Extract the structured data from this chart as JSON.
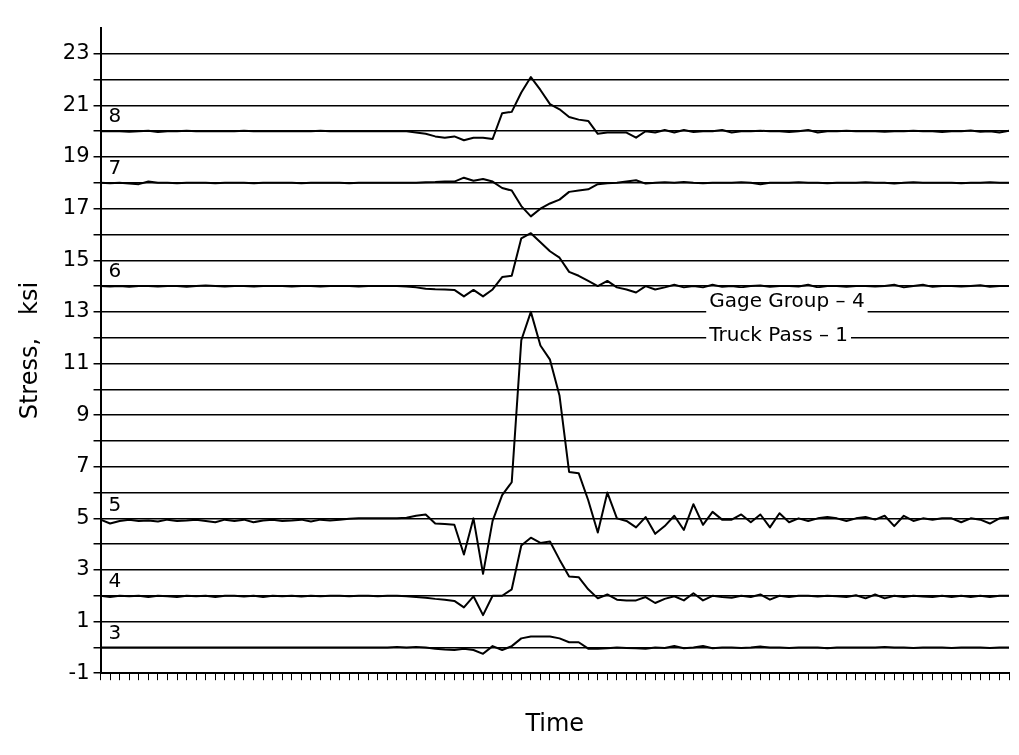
{
  "chart_data": {
    "type": "line",
    "xlabel": "Time",
    "ylabel": "Stress,   ksi",
    "annotations": [
      "Gage Group – 4",
      "Truck Pass – 1"
    ],
    "categories": [
      null,
      null,
      null,
      null,
      null,
      null,
      null,
      null,
      null,
      null,
      null,
      null,
      null,
      null,
      null,
      null,
      null,
      null,
      null,
      null,
      null,
      null,
      null,
      null,
      null,
      null,
      null,
      null,
      null,
      null,
      null,
      null,
      null,
      null,
      null,
      null,
      null,
      null,
      null,
      null,
      null,
      null,
      null,
      null,
      null,
      null,
      null,
      null,
      null,
      null,
      null,
      null,
      null,
      null,
      null,
      null,
      null,
      null,
      null,
      null,
      null,
      null,
      null,
      null,
      null,
      null,
      null,
      null,
      null,
      null,
      null,
      null,
      null,
      null,
      null,
      null,
      null,
      null,
      null,
      null,
      null,
      null,
      null,
      null,
      null,
      null,
      null,
      null,
      null,
      null,
      null,
      null,
      null,
      null,
      null,
      null
    ],
    "series": [
      {
        "name": "3",
        "color": "#000000",
        "values": [
          0,
          0,
          0,
          0,
          0,
          0,
          0,
          0,
          0,
          0,
          0,
          0,
          0,
          0,
          0,
          0,
          0,
          0,
          0,
          0,
          0,
          0,
          0,
          0,
          0,
          0,
          0,
          0,
          0,
          0,
          0,
          0.02,
          0,
          0.02,
          0,
          -0.05,
          -0.08,
          -0.1,
          -0.05,
          -0.1,
          -0.25,
          0.05,
          -0.1,
          0.05,
          0.35,
          0.42,
          0.42,
          0.42,
          0.35,
          0.2,
          0.2,
          -0.05,
          -0.05,
          -0.03,
          0,
          -0.02,
          -0.03,
          -0.05,
          0,
          -0.02,
          0.05,
          -0.03,
          0,
          0.05,
          -0.03,
          0,
          0,
          -0.02,
          0,
          0.03,
          0,
          0,
          -0.02,
          0,
          0,
          0,
          -0.03,
          0,
          0,
          0,
          0,
          0,
          0.02,
          0,
          0,
          -0.02,
          0,
          0,
          0,
          -0.02,
          0,
          0,
          0,
          -0.02,
          0,
          0
        ]
      },
      {
        "name": "4",
        "color": "#000000",
        "values": [
          2.0,
          1.95,
          2.0,
          1.98,
          2.0,
          1.95,
          2.0,
          1.98,
          1.95,
          2.0,
          1.98,
          2.0,
          1.95,
          2.0,
          2.0,
          1.97,
          2.0,
          1.95,
          2.0,
          1.98,
          2.0,
          1.97,
          2.0,
          1.98,
          2.0,
          2.0,
          1.98,
          2.0,
          2.0,
          1.98,
          2.0,
          2.0,
          1.98,
          1.95,
          1.92,
          1.88,
          1.85,
          1.8,
          1.55,
          1.98,
          1.25,
          2.0,
          2.0,
          2.25,
          3.95,
          4.25,
          4.05,
          4.1,
          3.4,
          2.75,
          2.72,
          2.25,
          1.9,
          2.05,
          1.85,
          1.82,
          1.82,
          1.95,
          1.72,
          1.88,
          1.98,
          1.82,
          2.1,
          1.82,
          2.0,
          1.95,
          1.92,
          2.0,
          1.95,
          2.05,
          1.85,
          2.0,
          1.95,
          2.0,
          2.0,
          1.97,
          2.0,
          1.98,
          1.95,
          2.02,
          1.9,
          2.05,
          1.9,
          2.0,
          1.95,
          2.0,
          1.97,
          1.95,
          2.0,
          1.95,
          2.0,
          1.95,
          2.0,
          1.95,
          2.0,
          2.0
        ]
      },
      {
        "name": "5",
        "color": "#000000",
        "values": [
          4.95,
          4.8,
          4.9,
          4.95,
          4.9,
          4.92,
          4.88,
          4.95,
          4.9,
          4.92,
          4.95,
          4.9,
          4.85,
          4.95,
          4.9,
          4.95,
          4.85,
          4.92,
          4.95,
          4.9,
          4.92,
          4.95,
          4.88,
          4.95,
          4.92,
          4.95,
          4.98,
          5.0,
          5.0,
          5.0,
          5.0,
          5.0,
          5.02,
          5.1,
          5.15,
          4.8,
          4.78,
          4.75,
          3.6,
          5.0,
          2.85,
          4.9,
          5.9,
          6.4,
          11.9,
          13.0,
          11.7,
          11.15,
          9.75,
          6.8,
          6.75,
          5.7,
          4.45,
          6.0,
          5.0,
          4.9,
          4.65,
          5.05,
          4.4,
          4.7,
          5.1,
          4.55,
          5.55,
          4.75,
          5.25,
          4.95,
          4.95,
          5.15,
          4.85,
          5.15,
          4.65,
          5.2,
          4.85,
          5.0,
          4.9,
          5.0,
          5.05,
          5.0,
          4.9,
          5.0,
          5.05,
          4.95,
          5.1,
          4.7,
          5.1,
          4.9,
          5.0,
          4.95,
          5.0,
          5.0,
          4.85,
          5.0,
          4.95,
          4.8,
          5.0,
          5.05
        ]
      },
      {
        "name": "6",
        "color": "#000000",
        "values": [
          14.0,
          13.98,
          14.0,
          13.97,
          14.0,
          14.0,
          13.98,
          14.0,
          14.0,
          13.97,
          14.0,
          14.02,
          14.0,
          13.98,
          14.0,
          14.0,
          13.98,
          14.0,
          14.0,
          14.0,
          13.98,
          14.0,
          14.0,
          13.98,
          14.0,
          14.0,
          14.0,
          13.98,
          14.0,
          14.0,
          14.0,
          14.0,
          13.98,
          13.95,
          13.9,
          13.88,
          13.87,
          13.85,
          13.6,
          13.85,
          13.6,
          13.87,
          14.35,
          14.4,
          15.85,
          16.05,
          15.7,
          15.35,
          15.1,
          14.55,
          14.4,
          14.2,
          14.0,
          14.2,
          13.95,
          13.87,
          13.75,
          14.0,
          13.87,
          13.95,
          14.05,
          13.95,
          14.0,
          13.95,
          14.05,
          13.97,
          14.0,
          13.95,
          14.0,
          14.02,
          13.97,
          14.0,
          14.0,
          13.98,
          14.05,
          13.95,
          14.0,
          14.0,
          13.97,
          14.0,
          14.0,
          13.98,
          14.0,
          14.05,
          13.95,
          14.0,
          14.05,
          13.97,
          14.0,
          14.0,
          13.98,
          14.0,
          14.03,
          13.97,
          14.0,
          14.0
        ]
      },
      {
        "name": "7",
        "color": "#000000",
        "values": [
          18.0,
          17.98,
          18.0,
          17.97,
          17.95,
          18.05,
          18.0,
          18.0,
          17.98,
          18.0,
          18.0,
          18.0,
          17.98,
          18.0,
          18.0,
          18.0,
          17.98,
          18.0,
          18.0,
          18.0,
          18.0,
          17.98,
          18.0,
          18.0,
          18.0,
          18.0,
          17.98,
          18.0,
          18.0,
          18.0,
          18.0,
          18.0,
          18.0,
          18.0,
          18.02,
          18.03,
          18.05,
          18.05,
          18.2,
          18.08,
          18.15,
          18.05,
          17.8,
          17.7,
          17.1,
          16.7,
          17.0,
          17.2,
          17.35,
          17.65,
          17.7,
          17.75,
          17.95,
          17.98,
          18.0,
          18.05,
          18.1,
          17.97,
          18.0,
          18.02,
          18.0,
          18.03,
          18.0,
          17.98,
          18.0,
          18.0,
          18.0,
          18.02,
          18.0,
          17.95,
          18.0,
          18.0,
          18.0,
          18.02,
          18.0,
          18.0,
          17.98,
          18.0,
          18.0,
          18.0,
          18.02,
          18.0,
          18.0,
          17.97,
          18.0,
          18.02,
          18.0,
          18.0,
          18.0,
          18.0,
          17.98,
          18.0,
          18.0,
          18.02,
          18.0,
          18.0
        ]
      },
      {
        "name": "8",
        "color": "#000000",
        "values": [
          20.0,
          20.0,
          20.0,
          19.98,
          20.0,
          20.02,
          19.97,
          20.0,
          20.0,
          20.02,
          20.0,
          20.0,
          20.0,
          20.0,
          20.0,
          20.02,
          20.0,
          20.0,
          20.0,
          20.0,
          20.0,
          20.0,
          20.0,
          20.02,
          20.0,
          20.0,
          20.0,
          20.0,
          20.0,
          20.0,
          20.0,
          20.0,
          20.0,
          19.95,
          19.9,
          19.8,
          19.75,
          19.8,
          19.65,
          19.75,
          19.75,
          19.7,
          20.7,
          20.75,
          21.5,
          22.1,
          21.6,
          21.05,
          20.85,
          20.55,
          20.45,
          20.4,
          19.9,
          19.95,
          19.95,
          19.95,
          19.75,
          20.0,
          19.95,
          20.05,
          19.95,
          20.05,
          19.97,
          20.0,
          20.0,
          20.05,
          19.95,
          20.0,
          20.0,
          20.02,
          20.0,
          20.0,
          19.97,
          20.0,
          20.05,
          19.95,
          20.0,
          20.0,
          20.02,
          20.0,
          20.0,
          20.0,
          19.98,
          20.0,
          20.0,
          20.02,
          20.0,
          20.0,
          19.97,
          20.0,
          20.0,
          20.03,
          19.98,
          20.0,
          19.95,
          20.02
        ]
      }
    ],
    "ylim": [
      -1,
      24
    ],
    "yticks": [
      -1,
      {
        "value": 0,
        "label": null
      },
      1,
      {
        "value": 2,
        "label": null
      },
      3,
      {
        "value": 4,
        "label": null
      },
      5,
      {
        "value": 6,
        "label": null
      },
      7,
      {
        "value": 8,
        "label": null
      },
      9,
      {
        "value": 10,
        "label": null
      },
      11,
      {
        "value": 12,
        "label": null
      },
      13,
      {
        "value": 14,
        "label": null
      },
      15,
      {
        "value": 16,
        "label": null
      },
      17,
      {
        "value": 18,
        "label": null
      },
      19,
      {
        "value": 20,
        "label": null
      },
      21,
      {
        "value": 22,
        "label": null
      },
      23
    ],
    "grid": "y",
    "tick_labels": "y",
    "marker": "none",
    "line_style": "solid",
    "legend": false
  }
}
